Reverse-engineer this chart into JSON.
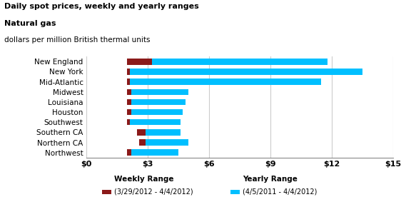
{
  "title_line1": "Daily spot prices, weekly and yearly ranges",
  "title_line2": "Natural gas",
  "subtitle": "dollars per million British thermal units",
  "categories": [
    "New England",
    "New York",
    "Mid-Atlantic",
    "Midwest",
    "Louisiana",
    "Houston",
    "Southwest",
    "Southern CA",
    "Northern CA",
    "Northwest"
  ],
  "weekly_start": [
    2.0,
    2.0,
    2.0,
    2.0,
    2.0,
    2.0,
    2.0,
    2.5,
    2.6,
    2.0
  ],
  "weekly_end": [
    3.2,
    2.15,
    2.15,
    2.2,
    2.2,
    2.2,
    2.15,
    2.9,
    2.9,
    2.2
  ],
  "yearly_start": [
    2.0,
    2.0,
    2.0,
    2.0,
    2.0,
    2.0,
    2.0,
    2.5,
    2.6,
    2.0
  ],
  "yearly_end": [
    11.8,
    13.5,
    11.5,
    5.0,
    4.85,
    4.7,
    4.6,
    4.6,
    5.0,
    4.5
  ],
  "weekly_color": "#8B1A1A",
  "yearly_color": "#00BFFF",
  "xlim": [
    0,
    15
  ],
  "xticks": [
    0,
    3,
    6,
    9,
    12,
    15
  ],
  "xtick_labels": [
    "$0",
    "$3",
    "$6",
    "$9",
    "$12",
    "$15"
  ],
  "bar_height": 0.6,
  "background_color": "#FFFFFF",
  "grid_color": "#CCCCCC"
}
